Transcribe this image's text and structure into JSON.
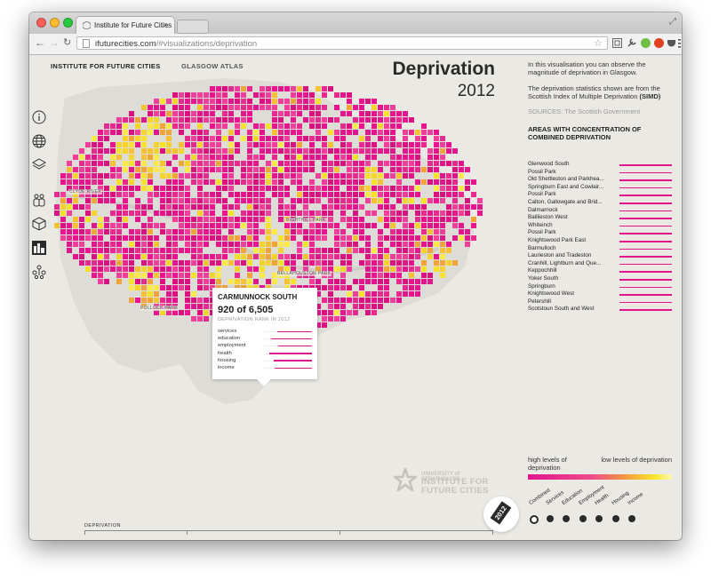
{
  "browser": {
    "tab_title": "Institute for Future Cities",
    "tab_close": "×",
    "url_domain": "ifuturecities.com",
    "url_path": "/#visualizations/deprivation"
  },
  "header": {
    "brand": "INSTITUTE FOR FUTURE CITIES",
    "section": "GLASGOW ATLAS",
    "title": "Deprivation",
    "year": "2012"
  },
  "sidebar": {
    "icons": [
      "info-icon",
      "globe-icon",
      "layers-icon",
      "people-icon",
      "box-icon",
      "city-icon",
      "network-icon"
    ]
  },
  "map": {
    "places": [
      "CLYDE RIVER",
      "BELLAHOUSTON PARK",
      "POLLOCK PARK",
      "BIGHTHILL PARK"
    ],
    "highlight_color": "#e0168c"
  },
  "tooltip": {
    "name": "CARMUNNOCK SOUTH",
    "rank": "920 of 6,505",
    "subtitle": "DEPRIVATION RANK IN 2012",
    "rows": [
      {
        "label": "services",
        "value": 0.72
      },
      {
        "label": "education",
        "value": 0.85
      },
      {
        "label": "employment",
        "value": 0.7
      },
      {
        "label": "health",
        "value": 0.88
      },
      {
        "label": "housing",
        "value": 0.8
      },
      {
        "label": "income",
        "value": 0.78
      }
    ]
  },
  "info": {
    "intro": "In this visualisation you can observe the magnitude of deprivation in Glasgow.",
    "stats_text": "The deprivation statistics shown are from the Scottish Index of Multiple Deprivation",
    "stats_abbr": "(SIMD)",
    "sources_label": "SOURCES:",
    "sources_value": "The Scottish Government",
    "list_title": "AREAS WITH CONCENTRATION OF COMBINED DEPRIVATION",
    "areas": [
      "Glenwood South",
      "Possil Park",
      "Old Shettleston and Parkhea...",
      "Springburn East and Cowlair...",
      "Possil Park",
      "Calton, Gallowgate and Brid...",
      "Dalmarnock",
      "Baillieston West",
      "Whiteinch",
      "Possil Park",
      "Knightswood Park East",
      "Barmulloch",
      "Laurieston and Tradeston",
      "Cranhill, Lightburn and Que...",
      "Keppochhill",
      "Yoker South",
      "Springburn",
      "Knightswood West",
      "Petershill",
      "Scotstoun South and West"
    ]
  },
  "legend": {
    "high_label": "high levels of deprivation",
    "low_label": "low levels of deprivation"
  },
  "logo": {
    "line1": "UNIVERSITY of STRATHCLYDE",
    "line2": "INSTITUTE FOR FUTURE CITIES"
  },
  "categories": {
    "items": [
      "Combined",
      "Services",
      "Education",
      "Employment",
      "Health",
      "Housing",
      "Income"
    ],
    "selected": "Combined"
  },
  "timeline": {
    "label": "DEPRIVATION",
    "year_badge": "2012"
  }
}
